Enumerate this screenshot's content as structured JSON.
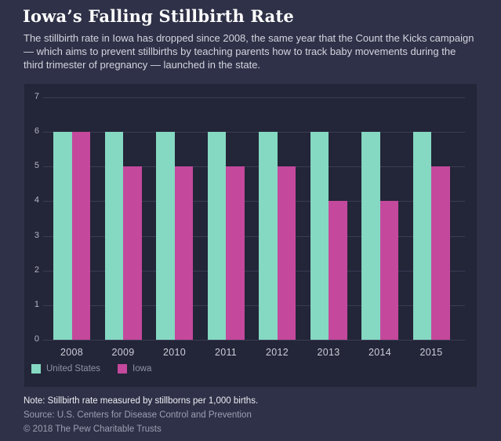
{
  "header": {
    "title": "Iowa’s Falling Stillbirth Rate",
    "subtitle": "The stillbirth rate in Iowa has dropped since 2008, the same year that the Count the Kicks campaign — which aims to prevent stillbirths by teaching parents how to track baby movements during the third trimester of pregnancy — launched in the state."
  },
  "chart_data": {
    "type": "bar",
    "title": "Iowa’s Falling Stillbirth Rate",
    "categories": [
      "2008",
      "2009",
      "2010",
      "2011",
      "2012",
      "2013",
      "2014",
      "2015"
    ],
    "series": [
      {
        "name": "United States",
        "color": "#85d8c2",
        "values": [
          6,
          6,
          6,
          6,
          6,
          6,
          6,
          6
        ]
      },
      {
        "name": "Iowa",
        "color": "#c4489c",
        "values": [
          6,
          5,
          5,
          5,
          5,
          4,
          4,
          5
        ]
      }
    ],
    "xlabel": "",
    "ylabel": "",
    "ylim": [
      0,
      7
    ],
    "yticks": [
      0,
      1,
      2,
      3,
      4,
      5,
      6,
      7
    ],
    "grid": true,
    "legend_position": "bottom-left",
    "units": "stillborns per 1,000 births"
  },
  "colors": {
    "page_background": "#2f3148",
    "panel_background": "#232538",
    "gridline": "#3a3c54",
    "united_states": "#85d8c2",
    "iowa": "#c4489c"
  },
  "footer": {
    "note": "Note: Stillbirth rate measured by stillborns per 1,000 births.",
    "source": "Source: U.S. Centers for Disease Control and Prevention",
    "copyright": "© 2018 The Pew Charitable Trusts"
  }
}
